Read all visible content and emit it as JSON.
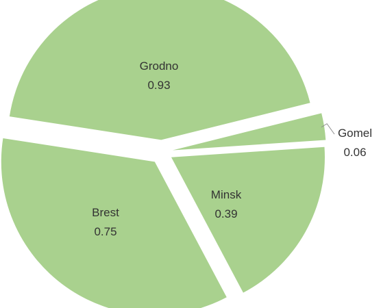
{
  "chart_data": {
    "type": "pie",
    "title": "",
    "slice_color": "#a9d18e",
    "background_color": "#ffffff",
    "label_color": "#333333",
    "leader_line_color": "#8c8c8c",
    "slices": [
      {
        "name": "Grodno",
        "value": 0.93
      },
      {
        "name": "Gomel",
        "value": 0.06
      },
      {
        "name": "Minsk",
        "value": 0.39
      },
      {
        "name": "Brest",
        "value": 0.75
      }
    ]
  }
}
